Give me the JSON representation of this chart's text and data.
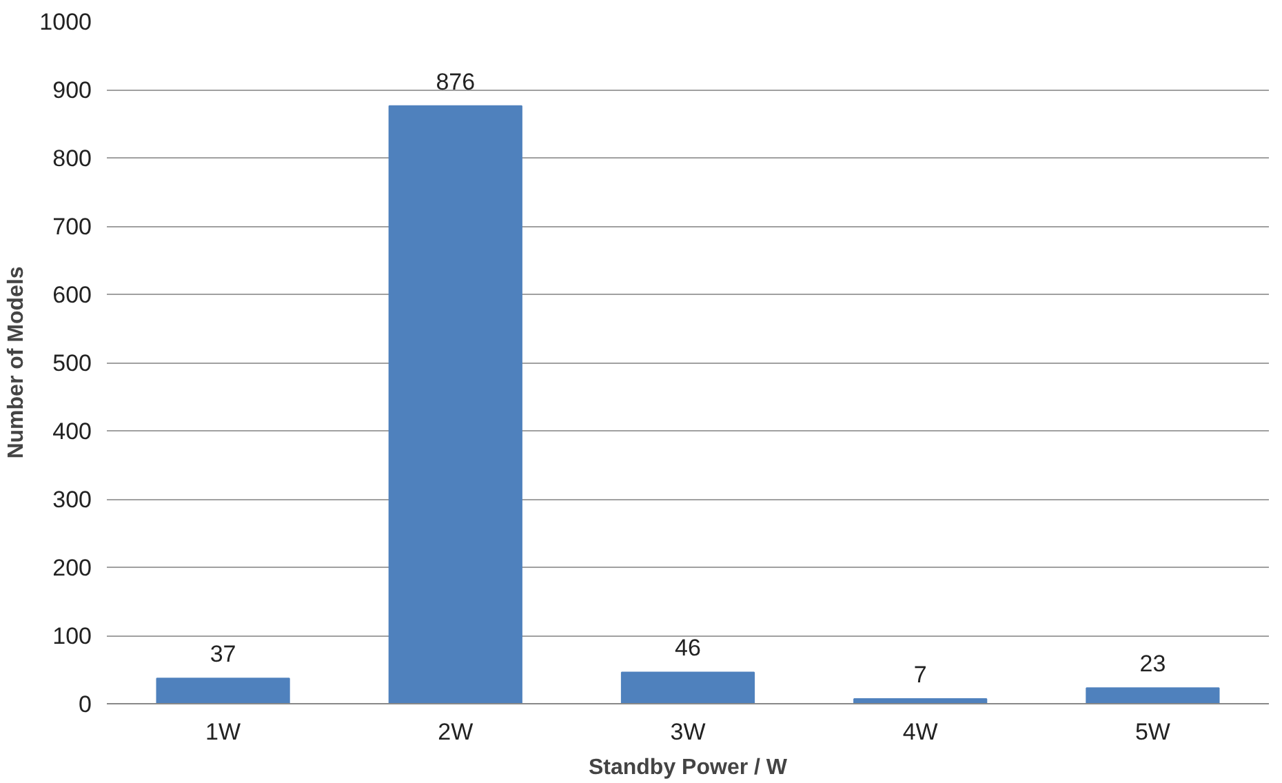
{
  "chart_data": {
    "type": "bar",
    "xlabel": "Standby Power / W",
    "ylabel": "Number of Models",
    "categories": [
      "1W",
      "2W",
      "3W",
      "4W",
      "5W"
    ],
    "values": [
      37,
      876,
      46,
      7,
      23
    ],
    "color": "#4f81bd",
    "ylim": [
      0,
      1000
    ],
    "yticks": [
      0,
      100,
      200,
      300,
      400,
      500,
      600,
      700,
      800,
      900,
      1000
    ],
    "grid": "y",
    "data_labels": true
  }
}
